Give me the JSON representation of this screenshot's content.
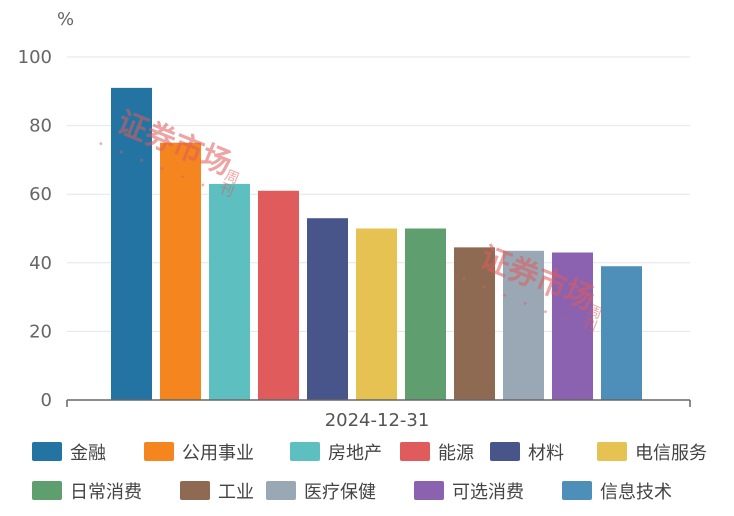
{
  "watermark": {
    "main": "证券市场",
    "side": "周刊"
  },
  "chart_data": {
    "type": "bar",
    "unit": "%",
    "categories": [
      "2024-12-31"
    ],
    "ylim": [
      0,
      100
    ],
    "yticks": [
      0,
      20,
      40,
      60,
      80,
      100
    ],
    "grid": true,
    "legend_position": "bottom",
    "series": [
      {
        "name": "金融",
        "values": [
          91
        ],
        "color": "#2374a3"
      },
      {
        "name": "公用事业",
        "values": [
          75
        ],
        "color": "#f5861f"
      },
      {
        "name": "房地产",
        "values": [
          63
        ],
        "color": "#5dbfbf"
      },
      {
        "name": "能源",
        "values": [
          61
        ],
        "color": "#e05b5b"
      },
      {
        "name": "材料",
        "values": [
          53
        ],
        "color": "#48558a"
      },
      {
        "name": "电信服务",
        "values": [
          50
        ],
        "color": "#e6c253"
      },
      {
        "name": "日常消费",
        "values": [
          50
        ],
        "color": "#5f9e6e"
      },
      {
        "name": "工业",
        "values": [
          44.5
        ],
        "color": "#8f6a52"
      },
      {
        "name": "医疗保健",
        "values": [
          43.5
        ],
        "color": "#9aa7b4"
      },
      {
        "name": "可选消费",
        "values": [
          43
        ],
        "color": "#8a62b0"
      },
      {
        "name": "信息技术",
        "values": [
          39
        ],
        "color": "#4d8fb8"
      }
    ]
  }
}
